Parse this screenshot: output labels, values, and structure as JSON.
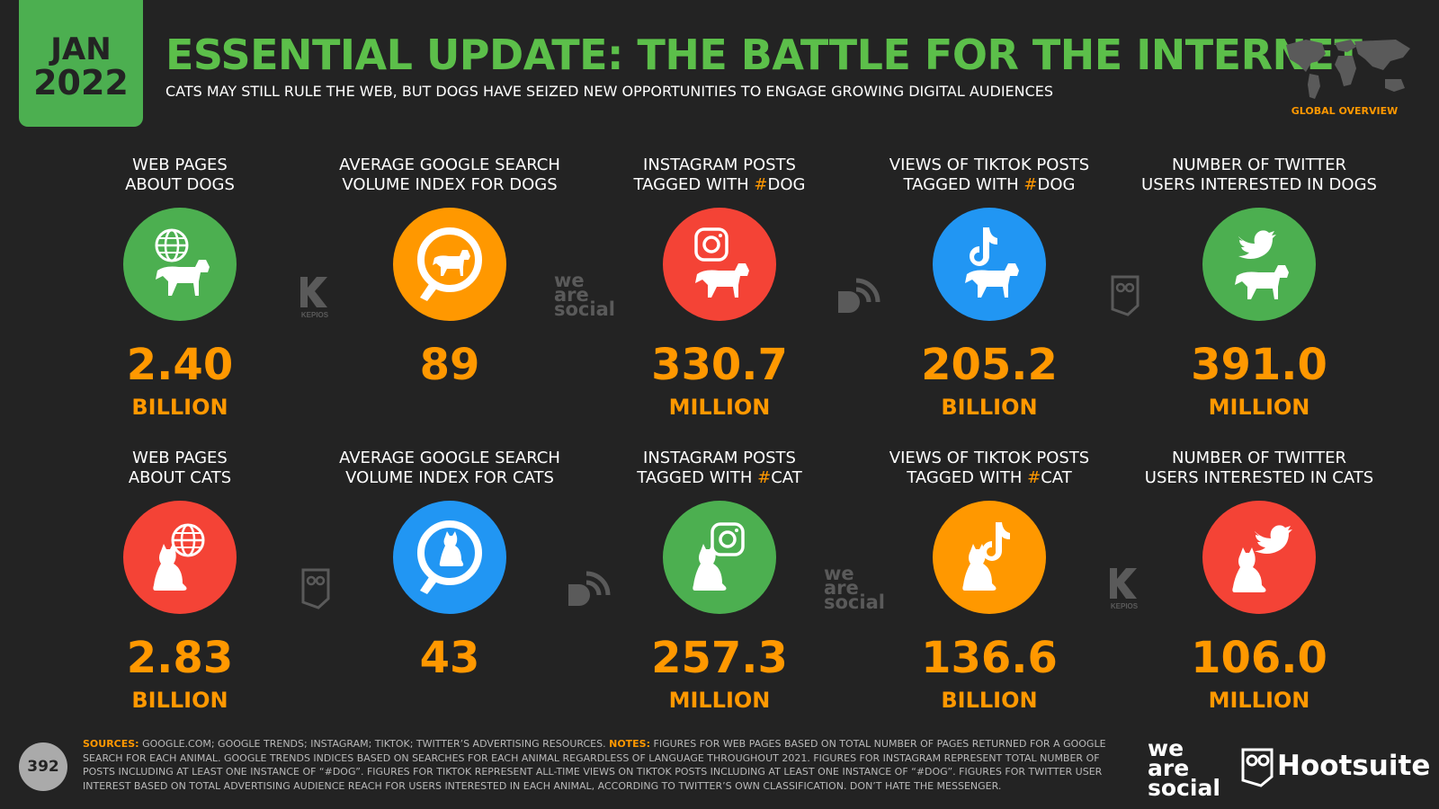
{
  "header": {
    "month": "JAN",
    "year": "2022",
    "title": "ESSENTIAL UPDATE: THE BATTLE FOR THE INTERNET",
    "subtitle": "CATS MAY STILL RULE THE WEB, BUT DOGS HAVE SEIZED NEW OPPORTUNITIES TO ENGAGE GROWING DIGITAL AUDIENCES",
    "overview": "GLOBAL OVERVIEW"
  },
  "colors": {
    "green": "#4caf50",
    "orange": "#ff9800",
    "red": "#f44336",
    "blue": "#2196f3"
  },
  "dogs": [
    {
      "label1": "WEB PAGES",
      "label2": "ABOUT DOGS",
      "value": "2.40",
      "unit": "BILLION",
      "icon": "globe-dog-icon",
      "color": "#4caf50"
    },
    {
      "label1": "AVERAGE GOOGLE SEARCH",
      "label2": "VOLUME INDEX FOR DOGS",
      "value": "89",
      "unit": "",
      "icon": "search-dog-icon",
      "color": "#ff9800"
    },
    {
      "label1": "INSTAGRAM POSTS",
      "label2_pre": "TAGGED WITH ",
      "hash": "#",
      "label2_post": "DOG",
      "value": "330.7",
      "unit": "MILLION",
      "icon": "instagram-dog-icon",
      "color": "#f44336"
    },
    {
      "label1": "VIEWS OF TIKTOK POSTS",
      "label2_pre": "TAGGED WITH ",
      "hash": "#",
      "label2_post": "DOG",
      "value": "205.2",
      "unit": "BILLION",
      "icon": "tiktok-dog-icon",
      "color": "#2196f3"
    },
    {
      "label1": "NUMBER OF TWITTER",
      "label2": "USERS INTERESTED IN DOGS",
      "value": "391.0",
      "unit": "MILLION",
      "icon": "twitter-dog-icon",
      "color": "#4caf50"
    }
  ],
  "cats": [
    {
      "label1": "WEB PAGES",
      "label2": "ABOUT CATS",
      "value": "2.83",
      "unit": "BILLION",
      "icon": "globe-cat-icon",
      "color": "#f44336"
    },
    {
      "label1": "AVERAGE GOOGLE SEARCH",
      "label2": "VOLUME INDEX FOR CATS",
      "value": "43",
      "unit": "",
      "icon": "search-cat-icon",
      "color": "#2196f3"
    },
    {
      "label1": "INSTAGRAM POSTS",
      "label2_pre": "TAGGED WITH ",
      "hash": "#",
      "label2_post": "CAT",
      "value": "257.3",
      "unit": "MILLION",
      "icon": "instagram-cat-icon",
      "color": "#4caf50"
    },
    {
      "label1": "VIEWS OF TIKTOK POSTS",
      "label2_pre": "TAGGED WITH ",
      "hash": "#",
      "label2_post": "CAT",
      "value": "136.6",
      "unit": "BILLION",
      "icon": "tiktok-cat-icon",
      "color": "#ff9800"
    },
    {
      "label1": "NUMBER OF TWITTER",
      "label2": "USERS INTERESTED IN CATS",
      "value": "106.0",
      "unit": "MILLION",
      "icon": "twitter-cat-icon",
      "color": "#f44336"
    }
  ],
  "footer": {
    "page_number": "392",
    "sources_label": "SOURCES:",
    "sources_text": " GOOGLE.COM; GOOGLE TRENDS; INSTAGRAM; TIKTOK; TWITTER’S ADVERTISING RESOURCES. ",
    "notes_label": "NOTES:",
    "notes_text": " FIGURES FOR WEB PAGES BASED ON TOTAL NUMBER OF PAGES RETURNED FOR A GOOGLE SEARCH FOR EACH ANIMAL. GOOGLE TRENDS INDICES BASED ON SEARCHES FOR EACH ANIMAL REGARDLESS OF LANGUAGE THROUGHOUT 2021. FIGURES FOR INSTAGRAM REPRESENT TOTAL NUMBER OF POSTS INCLUDING AT LEAST ONE INSTANCE OF “#DOG”. FIGURES FOR TIKTOK REPRESENT ALL-TIME VIEWS ON TIKTOK POSTS INCLUDING AT LEAST ONE INSTANCE OF “#DOG”. FIGURES FOR TWITTER USER INTEREST BASED ON TOTAL ADVERTISING AUDIENCE REACH FOR USERS INTERESTED IN EACH ANIMAL, ACCORDING TO TWITTER’S OWN CLASSIFICATION. DON’T HATE THE MESSENGER.",
    "was_line1": "we",
    "was_line2": "are",
    "was_line3": "social",
    "hootsuite": "Hootsuite",
    "kepios": "KEPIOS"
  }
}
